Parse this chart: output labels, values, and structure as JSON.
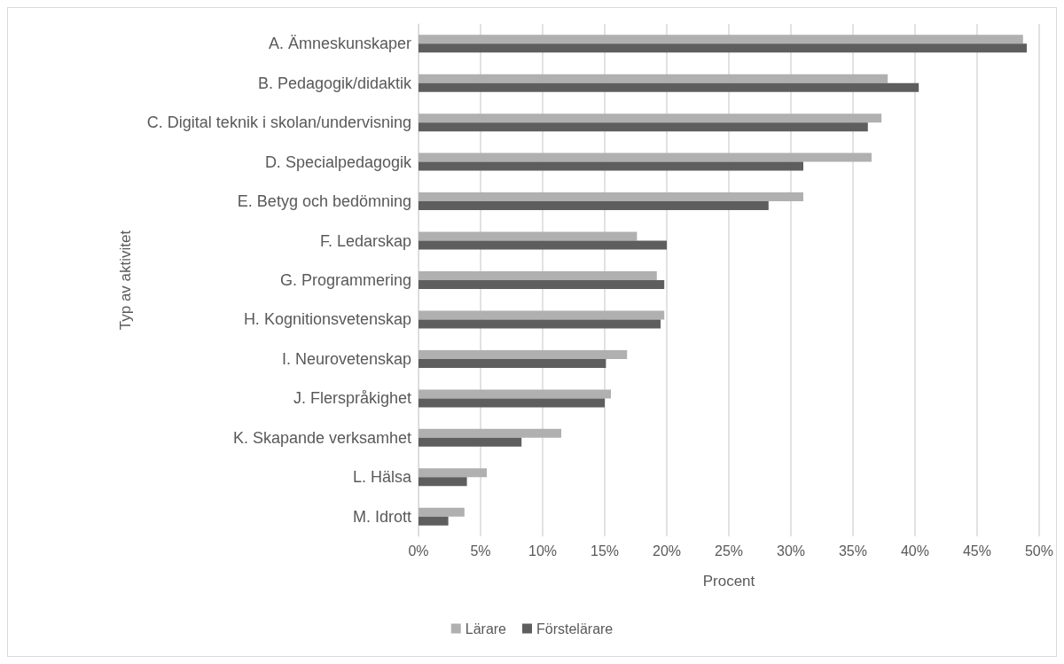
{
  "chart_data": {
    "type": "bar",
    "orientation": "horizontal",
    "xlabel": "Procent",
    "ylabel": "Typ av aktivitet",
    "categories": [
      "A. Ämneskunskaper",
      "B. Pedagogik/didaktik",
      "C. Digital teknik i skolan/undervisning",
      "D. Specialpedagogik",
      "E. Betyg och bedömning",
      "F. Ledarskap",
      "G. Programmering",
      "H. Kognitionsvetenskap",
      "I. Neurovetenskap",
      "J. Flerspråkighet",
      "K. Skapande verksamhet",
      "L. Hälsa",
      "M. Idrott"
    ],
    "series": [
      {
        "name": "Lärare",
        "color": "#b0b0b0",
        "values": [
          48.7,
          37.8,
          37.3,
          36.5,
          31.0,
          17.6,
          19.2,
          19.8,
          16.8,
          15.5,
          11.5,
          5.5,
          3.7
        ]
      },
      {
        "name": "Förstelärare",
        "color": "#5e5e5e",
        "values": [
          49.0,
          40.3,
          36.2,
          31.0,
          28.2,
          20.0,
          19.8,
          19.5,
          15.1,
          15.0,
          8.3,
          3.9,
          2.4
        ]
      }
    ],
    "xlim": [
      0,
      50
    ],
    "xticks": [
      {
        "value": 0,
        "label": "0%"
      },
      {
        "value": 5,
        "label": "5%"
      },
      {
        "value": 10,
        "label": "10%"
      },
      {
        "value": 15,
        "label": "15%"
      },
      {
        "value": 20,
        "label": "20%"
      },
      {
        "value": 25,
        "label": "25%"
      },
      {
        "value": 30,
        "label": "30%"
      },
      {
        "value": 35,
        "label": "35%"
      },
      {
        "value": 40,
        "label": "40%"
      },
      {
        "value": 45,
        "label": "45%"
      },
      {
        "value": 50,
        "label": "50%"
      }
    ],
    "grid": "x",
    "legend": "bottom"
  }
}
